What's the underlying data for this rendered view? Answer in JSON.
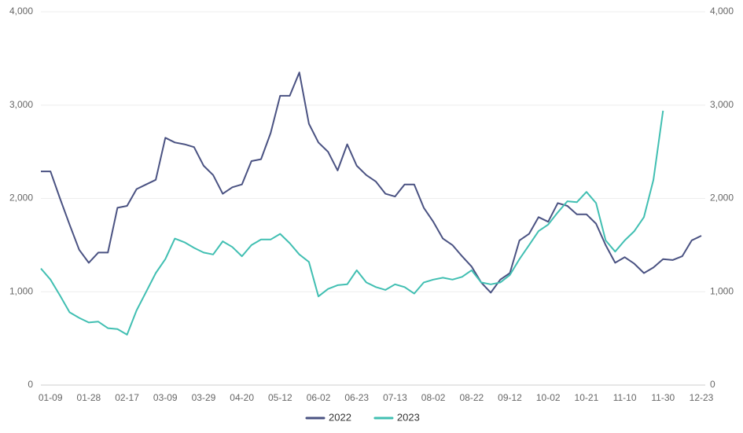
{
  "chart_data": {
    "type": "line",
    "categories": [
      null,
      "01-09",
      null,
      null,
      null,
      "01-28",
      null,
      null,
      null,
      "02-17",
      null,
      null,
      null,
      "03-09",
      null,
      null,
      null,
      "03-29",
      null,
      null,
      null,
      "04-20",
      null,
      null,
      null,
      "05-12",
      null,
      null,
      null,
      "06-02",
      null,
      null,
      null,
      "06-23",
      null,
      null,
      null,
      "07-13",
      null,
      null,
      null,
      "08-02",
      null,
      null,
      null,
      "08-22",
      null,
      null,
      null,
      "09-12",
      null,
      null,
      null,
      "10-02",
      null,
      null,
      null,
      "10-21",
      null,
      null,
      null,
      "11-10",
      null,
      null,
      null,
      "11-30",
      null,
      null,
      null,
      "12-23"
    ],
    "series": [
      {
        "name": "2022",
        "color": "#4a5282",
        "values": [
          2290,
          2290,
          2000,
          1720,
          1450,
          1310,
          1420,
          1420,
          1900,
          1920,
          2100,
          2150,
          2200,
          2650,
          2600,
          2580,
          2550,
          2350,
          2250,
          2050,
          2120,
          2150,
          2400,
          2420,
          2700,
          3100,
          3100,
          3350,
          2800,
          2600,
          2500,
          2300,
          2580,
          2350,
          2250,
          2180,
          2050,
          2020,
          2150,
          2150,
          1900,
          1750,
          1570,
          1500,
          1380,
          1270,
          1100,
          990,
          1130,
          1200,
          1550,
          1620,
          1800,
          1750,
          1950,
          1920,
          1830,
          1830,
          1730,
          1500,
          1310,
          1370,
          1300,
          1200,
          1260,
          1350,
          1340,
          1380,
          1550,
          1600
        ]
      },
      {
        "name": "2023",
        "color": "#41bfb2",
        "values": [
          1250,
          1130,
          960,
          780,
          720,
          670,
          680,
          610,
          600,
          540,
          800,
          1000,
          1200,
          1350,
          1570,
          1530,
          1470,
          1420,
          1400,
          1540,
          1480,
          1380,
          1500,
          1560,
          1560,
          1620,
          1520,
          1400,
          1320,
          950,
          1030,
          1070,
          1080,
          1230,
          1100,
          1050,
          1020,
          1080,
          1050,
          980,
          1100,
          1130,
          1150,
          1130,
          1160,
          1230,
          1100,
          1080,
          1100,
          1180,
          1350,
          1500,
          1650,
          1720,
          1850,
          1970,
          1960,
          2070,
          1950,
          1550,
          1430,
          1550,
          1650,
          1800,
          2200,
          2940,
          null,
          null,
          null,
          null
        ]
      }
    ],
    "ylim": [
      0,
      4000
    ],
    "yticks": [
      0,
      {
        "value": 1000,
        "label": "1,000"
      },
      {
        "value": 2000,
        "label": "2,000"
      },
      {
        "value": 3000,
        "label": "3,000"
      },
      {
        "value": 4000,
        "label": "4,000"
      }
    ],
    "y2lim": [
      0,
      4000
    ],
    "y2ticks": [
      0,
      {
        "value": 1000,
        "label": "1,000"
      },
      {
        "value": 2000,
        "label": "2,000"
      },
      {
        "value": 3000,
        "label": "3,000"
      },
      {
        "value": 4000,
        "label": "4,000"
      }
    ],
    "grid": true,
    "legend": "bottom"
  }
}
